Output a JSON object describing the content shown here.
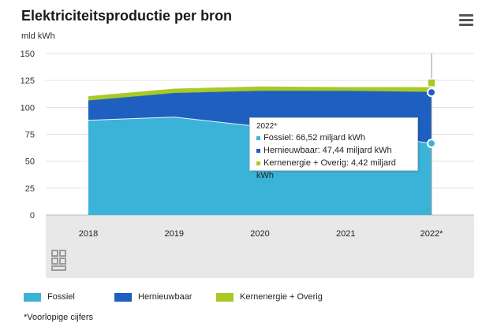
{
  "header": {
    "title": "Elektriciteitsproductie per bron",
    "unit": "mld kWh"
  },
  "chart_data": {
    "type": "area",
    "stacked": true,
    "categories": [
      "2018",
      "2019",
      "2020",
      "2021",
      "2022*"
    ],
    "ylim": [
      0,
      150
    ],
    "yticks": [
      0,
      25,
      50,
      75,
      100,
      125,
      150
    ],
    "series": [
      {
        "name": "Fossiel",
        "color": "#3bb3d8",
        "values": [
          88,
          91,
          82,
          78,
          66.52
        ]
      },
      {
        "name": "Hernieuwbaar",
        "color": "#1f5fbf",
        "values": [
          18,
          22,
          33,
          37,
          47.44
        ]
      },
      {
        "name": "Kernenergie + Overig",
        "color": "#a8c926",
        "values": [
          4,
          4,
          4,
          3.5,
          4.42
        ]
      }
    ],
    "grid": true,
    "legend": "bottom"
  },
  "tooltip": {
    "title": "2022*",
    "lines": [
      "Fossiel: 66,52 miljard kWh",
      "Hernieuwbaar: 47,44 miljard kWh",
      "Kernenergie + Overig: 4,42 miljard kWh"
    ]
  },
  "legend": {
    "items": [
      "Fossiel",
      "Hernieuwbaar",
      "Kernenergie + Overig"
    ]
  },
  "footnote": "*Voorlopige cijfers",
  "icons": {
    "menu": "hamburger-menu-icon",
    "logo": "cbs-logo-icon"
  }
}
